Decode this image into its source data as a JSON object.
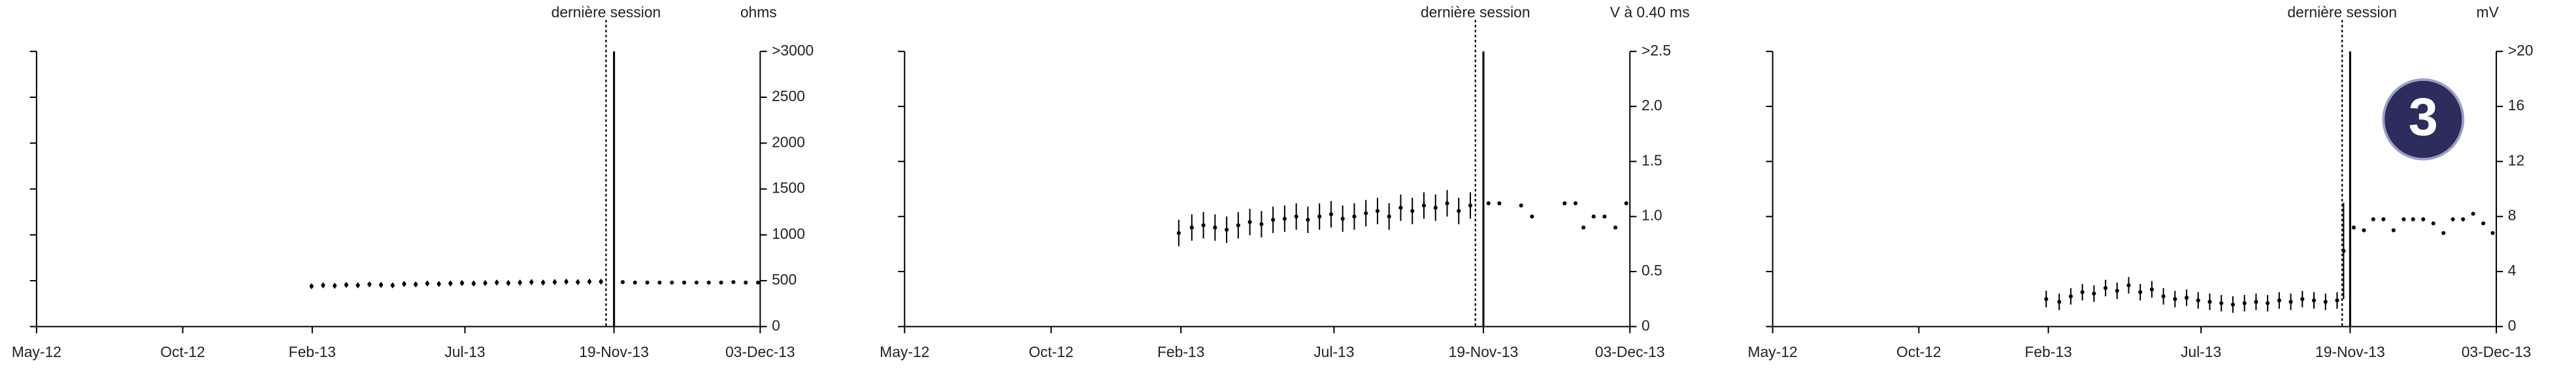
{
  "chart_data": [
    {
      "type": "scatter",
      "y_unit": "ohms",
      "session_label": "dernière session",
      "session_x": 78.7,
      "current_x": 79.8,
      "color": "#000000",
      "xlim": [
        0,
        100
      ],
      "xticks": [
        {
          "value": 0,
          "label": "May-12"
        },
        {
          "value": 20.2,
          "label": "Oct-12"
        },
        {
          "value": 38.1,
          "label": "Feb-13"
        },
        {
          "value": 59.2,
          "label": "Jul-13"
        },
        {
          "value": 79.8,
          "label": "19-Nov-13"
        },
        {
          "value": 100,
          "label": "03-Dec-13"
        }
      ],
      "ylim": [
        0,
        3000
      ],
      "yticks": [
        0,
        500,
        1000,
        1500,
        2000,
        2500,
        {
          "value": 3000,
          "label": ">3000"
        }
      ],
      "x": [
        38,
        39.6,
        41.2,
        42.8,
        44.4,
        46,
        47.6,
        49.2,
        50.8,
        52.4,
        54,
        55.6,
        57.2,
        58.8,
        60.4,
        62,
        63.6,
        65.2,
        66.8,
        68.4,
        70,
        71.6,
        73.2,
        74.8,
        76.4,
        78,
        81,
        82.7,
        84.4,
        86.1,
        87.8,
        89.5,
        91.2,
        92.9,
        94.6,
        96.3,
        98,
        99.7
      ],
      "values": [
        440,
        450,
        445,
        455,
        450,
        460,
        455,
        450,
        465,
        460,
        470,
        465,
        470,
        475,
        470,
        475,
        480,
        475,
        480,
        485,
        480,
        485,
        490,
        485,
        490,
        490,
        485,
        480,
        480,
        480,
        480,
        480,
        480,
        480,
        480,
        485,
        480,
        480
      ],
      "errors": [
        30,
        30,
        30,
        30,
        30,
        30,
        30,
        30,
        30,
        30,
        30,
        30,
        30,
        30,
        30,
        30,
        30,
        30,
        30,
        30,
        30,
        30,
        30,
        30,
        30,
        30,
        null,
        null,
        null,
        null,
        null,
        null,
        null,
        null,
        null,
        null,
        null,
        null
      ]
    },
    {
      "type": "scatter",
      "y_unit": "V à 0.40 ms",
      "session_label": "dernière session",
      "session_x": 78.7,
      "current_x": 79.8,
      "color": "#000000",
      "xlim": [
        0,
        100
      ],
      "xticks": [
        {
          "value": 0,
          "label": "May-12"
        },
        {
          "value": 20.2,
          "label": "Oct-12"
        },
        {
          "value": 38.1,
          "label": "Feb-13"
        },
        {
          "value": 59.2,
          "label": "Jul-13"
        },
        {
          "value": 79.8,
          "label": "19-Nov-13"
        },
        {
          "value": 100,
          "label": "03-Dec-13"
        }
      ],
      "ylim": [
        0,
        2.5
      ],
      "yticks": [
        {
          "value": 0,
          "label": "0"
        },
        {
          "value": 0.5,
          "label": "0.5"
        },
        {
          "value": 1,
          "label": "1.0"
        },
        {
          "value": 1.5,
          "label": "1.5"
        },
        {
          "value": 2,
          "label": "2.0"
        },
        {
          "value": 2.5,
          "label": ">2.5"
        }
      ],
      "x": [
        37.8,
        39.6,
        41.2,
        42.8,
        44.4,
        46,
        47.6,
        49.2,
        50.8,
        52.4,
        54,
        55.6,
        57.2,
        58.8,
        60.4,
        62,
        63.6,
        65.2,
        66.8,
        68.4,
        70,
        71.6,
        73.2,
        74.8,
        76.4,
        78,
        80.5,
        82,
        85,
        86.5,
        91,
        92.5,
        93.6,
        95,
        96.5,
        98,
        99.5
      ],
      "values": [
        0.85,
        0.9,
        0.92,
        0.9,
        0.88,
        0.92,
        0.95,
        0.93,
        0.97,
        0.98,
        1.0,
        0.97,
        1.0,
        1.02,
        0.98,
        1.0,
        1.03,
        1.05,
        1.0,
        1.08,
        1.05,
        1.1,
        1.08,
        1.12,
        1.05,
        1.1,
        1.12,
        1.12,
        1.1,
        1.0,
        1.12,
        1.12,
        0.9,
        1.0,
        1.0,
        0.9,
        1.12
      ],
      "errors": [
        0.12,
        0.12,
        0.12,
        0.12,
        0.12,
        0.12,
        0.12,
        0.12,
        0.12,
        0.12,
        0.12,
        0.12,
        0.12,
        0.12,
        0.12,
        0.12,
        0.12,
        0.12,
        0.12,
        0.12,
        0.12,
        0.12,
        0.12,
        0.12,
        0.12,
        0.12,
        null,
        null,
        null,
        null,
        null,
        null,
        null,
        null,
        null,
        null,
        null
      ]
    },
    {
      "type": "scatter",
      "y_unit": "mV",
      "session_label": "dernière session",
      "session_x": 78.7,
      "current_x": 79.8,
      "badge": "3",
      "color": "#000000",
      "xlim": [
        0,
        100
      ],
      "xticks": [
        {
          "value": 0,
          "label": "May-12"
        },
        {
          "value": 20.2,
          "label": "Oct-12"
        },
        {
          "value": 38.1,
          "label": "Feb-13"
        },
        {
          "value": 59.2,
          "label": "Jul-13"
        },
        {
          "value": 79.8,
          "label": "19-Nov-13"
        },
        {
          "value": 100,
          "label": "03-Dec-13"
        }
      ],
      "ylim": [
        0,
        20
      ],
      "yticks": [
        0,
        4,
        8,
        12,
        16,
        {
          "value": 20,
          "label": ">20"
        }
      ],
      "x": [
        37.8,
        39.6,
        41.2,
        42.8,
        44.4,
        46,
        47.6,
        49.2,
        50.8,
        52.4,
        54,
        55.6,
        57.2,
        58.8,
        60.4,
        62,
        63.6,
        65.2,
        66.8,
        68.4,
        70,
        71.6,
        73.2,
        74.8,
        76.4,
        78,
        78.9,
        80.3,
        81.7,
        83,
        84.4,
        85.8,
        87.2,
        88.5,
        89.9,
        91.3,
        92.7,
        94,
        95.4,
        96.8,
        98.2,
        99.5
      ],
      "values": [
        2.0,
        1.8,
        2.2,
        2.5,
        2.4,
        2.8,
        2.6,
        3.0,
        2.5,
        2.7,
        2.2,
        2.0,
        2.1,
        1.9,
        1.8,
        1.7,
        1.6,
        1.7,
        1.8,
        1.7,
        1.9,
        1.8,
        2.0,
        1.9,
        1.8,
        1.9,
        5.5,
        7.2,
        7.0,
        7.8,
        7.8,
        7.0,
        7.8,
        7.8,
        7.8,
        7.5,
        6.8,
        7.8,
        7.8,
        8.2,
        7.5,
        6.8
      ],
      "errors": [
        0.6,
        0.6,
        0.6,
        0.6,
        0.6,
        0.6,
        0.6,
        0.6,
        0.6,
        0.6,
        0.6,
        0.6,
        0.6,
        0.6,
        0.6,
        0.6,
        0.6,
        0.6,
        0.6,
        0.6,
        0.6,
        0.6,
        0.6,
        0.6,
        0.6,
        0.6,
        3.5,
        null,
        null,
        null,
        null,
        null,
        null,
        null,
        null,
        null,
        null,
        null,
        null,
        null,
        null,
        null
      ]
    }
  ]
}
